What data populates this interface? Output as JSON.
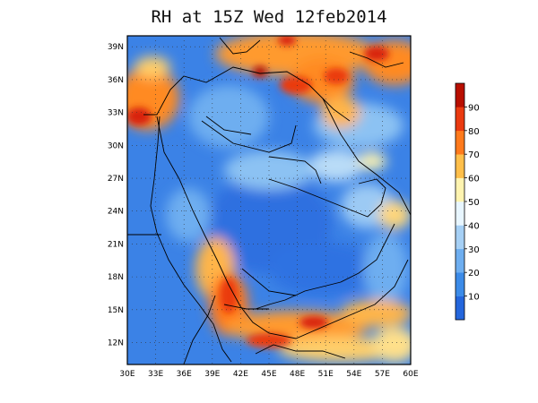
{
  "title": "RH at 15Z Wed 12feb2014",
  "map": {
    "lon_range": [
      30,
      60
    ],
    "lat_range": [
      10,
      40
    ],
    "x_ticks": [
      "30E",
      "33E",
      "36E",
      "39E",
      "42E",
      "45E",
      "48E",
      "51E",
      "54E",
      "57E",
      "60E"
    ],
    "y_ticks": [
      "12N",
      "15N",
      "18N",
      "21N",
      "24N",
      "27N",
      "30N",
      "33N",
      "36N",
      "39N"
    ],
    "grid": "dotted"
  },
  "colorbar": {
    "labels": [
      "10",
      "20",
      "30",
      "40",
      "50",
      "60",
      "70",
      "80",
      "90"
    ],
    "colors": [
      "#2466dc",
      "#3c8be8",
      "#6eaef0",
      "#a6d0f5",
      "#e8f6ff",
      "#fff4b0",
      "#ffbf4a",
      "#ff7a1c",
      "#ea3a10",
      "#b80f00"
    ]
  },
  "colors": {
    "ocean_low": "#2f78e6",
    "land_low": "#4a8ee6",
    "boundary": "#000000"
  }
}
